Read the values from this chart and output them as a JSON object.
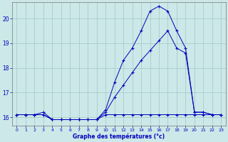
{
  "xlabel": "Graphe des températures (°c)",
  "background_color": "#cce8e8",
  "grid_color": "#aacccc",
  "line_color": "#0000bb",
  "ylim": [
    15.65,
    20.65
  ],
  "xlim": [
    -0.5,
    23.5
  ],
  "yticks": [
    16,
    17,
    18,
    19,
    20
  ],
  "xticks": [
    0,
    1,
    2,
    3,
    4,
    5,
    6,
    7,
    8,
    9,
    10,
    11,
    12,
    13,
    14,
    15,
    16,
    17,
    18,
    19,
    20,
    21,
    22,
    23
  ],
  "line1_x": [
    0,
    1,
    2,
    3,
    4,
    5,
    6,
    7,
    8,
    9,
    10,
    11,
    12,
    13,
    14,
    15,
    16,
    17,
    18,
    19,
    20,
    21,
    22,
    23
  ],
  "line1_y": [
    16.1,
    16.1,
    16.1,
    16.1,
    15.9,
    15.9,
    15.9,
    15.9,
    15.9,
    15.9,
    16.1,
    16.1,
    16.1,
    16.1,
    16.1,
    16.1,
    16.1,
    16.1,
    16.1,
    16.1,
    16.1,
    16.1,
    16.1,
    16.1
  ],
  "line2_x": [
    0,
    1,
    2,
    3,
    4,
    5,
    6,
    7,
    8,
    9,
    10,
    11,
    12,
    13,
    14,
    15,
    16,
    17,
    18,
    19,
    20,
    21,
    22,
    23
  ],
  "line2_y": [
    16.1,
    16.1,
    16.1,
    16.2,
    15.9,
    15.9,
    15.9,
    15.9,
    15.9,
    15.9,
    16.2,
    16.8,
    17.3,
    17.8,
    18.3,
    18.7,
    19.1,
    19.5,
    18.8,
    18.6,
    16.2,
    16.2,
    16.1,
    16.1
  ],
  "line3_x": [
    0,
    1,
    2,
    3,
    4,
    5,
    6,
    7,
    8,
    9,
    10,
    11,
    12,
    13,
    14,
    15,
    16,
    17,
    18,
    19,
    20,
    21,
    22,
    23
  ],
  "line3_y": [
    16.1,
    16.1,
    16.1,
    16.1,
    15.9,
    15.9,
    15.9,
    15.9,
    15.9,
    15.9,
    16.3,
    17.4,
    18.3,
    18.8,
    19.5,
    20.3,
    20.5,
    20.3,
    19.5,
    18.8,
    16.2,
    16.2,
    16.1,
    16.1
  ]
}
